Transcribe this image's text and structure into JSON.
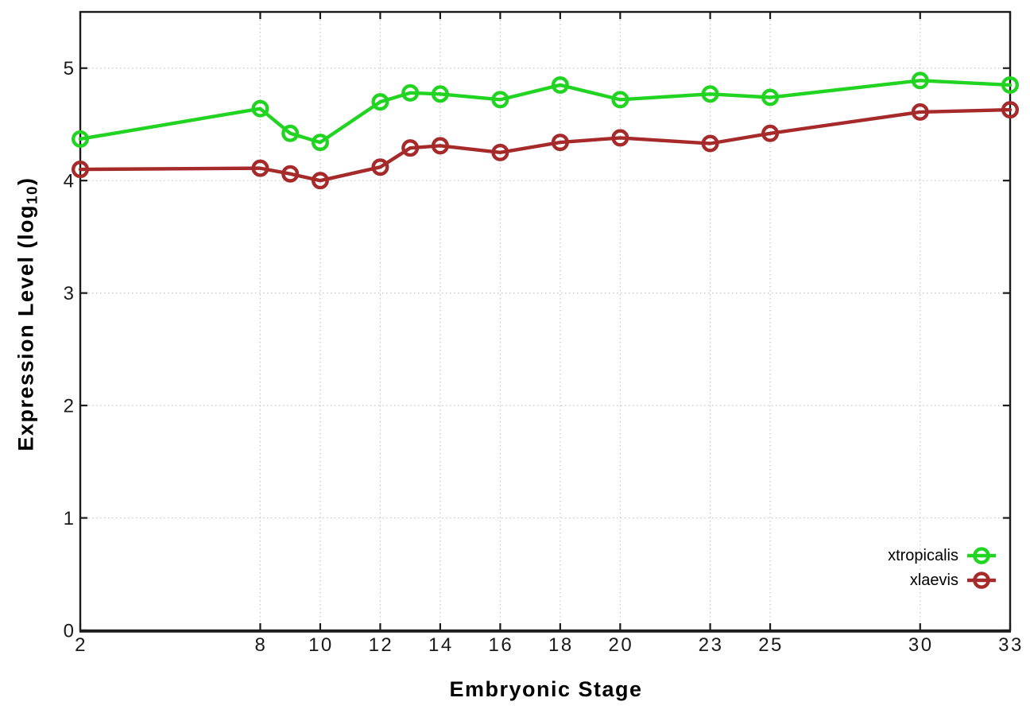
{
  "chart_data": {
    "type": "line",
    "title": "",
    "xlabel": "Embryonic Stage",
    "ylabel": {
      "prefix": "Expression Level (log",
      "sub": "10",
      "suffix": ")"
    },
    "x": [
      2,
      8,
      9,
      10,
      12,
      13,
      14,
      16,
      18,
      20,
      23,
      25,
      30,
      33
    ],
    "series": [
      {
        "name": "xtropicalis",
        "color": "#22d422",
        "values": [
          4.37,
          4.64,
          4.42,
          4.34,
          4.7,
          4.78,
          4.77,
          4.72,
          4.85,
          4.72,
          4.77,
          4.74,
          4.89,
          4.85
        ]
      },
      {
        "name": "xlaevis",
        "color": "#a62a2a",
        "values": [
          4.1,
          4.11,
          4.06,
          4.0,
          4.12,
          4.29,
          4.31,
          4.25,
          4.34,
          4.38,
          4.33,
          4.42,
          4.61,
          4.63
        ]
      }
    ],
    "xlim": [
      2,
      33
    ],
    "ylim": [
      0,
      5.5
    ],
    "xticks": [
      2,
      8,
      10,
      12,
      14,
      16,
      18,
      20,
      23,
      25,
      30,
      33
    ],
    "yticks": [
      0,
      1,
      2,
      3,
      4,
      5
    ],
    "grid": "dotted",
    "legend_position": "inside-bottom-right",
    "marker": "open-circle"
  }
}
